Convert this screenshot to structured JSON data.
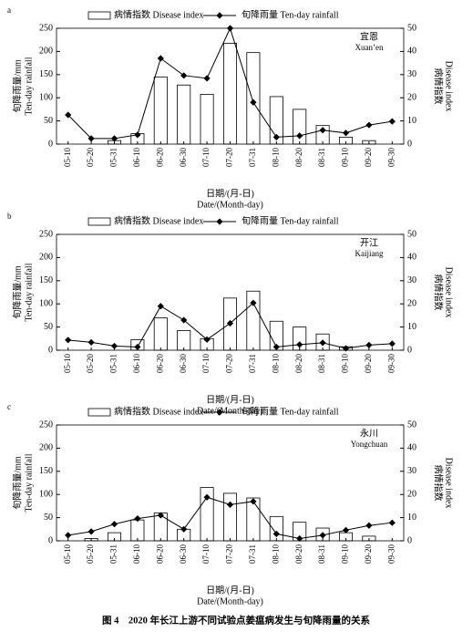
{
  "caption": "图 4　2020 年长江上游不同试验点姜瘟病发生与旬降雨量的关系",
  "chart_data": [
    {
      "type": "combo",
      "panel": "a",
      "location": "宜恩",
      "location_en": "Xuan’en",
      "y_label": "旬降雨量/mm",
      "y_label_en": "Ten-day rainfall",
      "y2_label": "病情指数",
      "y2_label_en": "Disease index",
      "x_label": "日期/(月-日)",
      "x_label_en": "Date/(Month-day)",
      "categories": [
        "05-10",
        "05-20",
        "05-31",
        "06-10",
        "06-20",
        "06-30",
        "07-10",
        "07-20",
        "07-31",
        "08-10",
        "08-20",
        "08-31",
        "09-10",
        "09-20",
        "09-30"
      ],
      "series": [
        {
          "name": "病情指数 Disease index",
          "color": "#ffffff",
          "axis": "y2",
          "values": [
            0,
            0,
            1.5,
            4.5,
            29,
            25.5,
            21.5,
            43.5,
            39.5,
            20.5,
            15,
            8,
            3,
            1.5,
            0
          ]
        },
        {
          "name": "旬降雨量 Ten-day rainfall",
          "color": "#000000",
          "values": [
            63,
            12,
            12,
            20,
            185,
            148,
            142,
            250,
            90,
            15,
            18,
            30,
            24,
            41,
            49
          ]
        }
      ],
      "ylim": [
        0,
        250
      ],
      "yticks": [
        0,
        50,
        100,
        150,
        200,
        250
      ],
      "y2lim": [
        0,
        50
      ],
      "y2ticks": [
        0,
        10,
        20,
        30,
        40,
        50
      ]
    },
    {
      "type": "combo",
      "panel": "b",
      "location": "开江",
      "location_en": "Kaijiang",
      "y_label": "旬降雨量/mm",
      "y_label_en": "Ten-day rainfall",
      "y2_label": "病情指数",
      "y2_label_en": "Disease index",
      "x_label": "日期/(月-日)",
      "x_label_en": "Date/(Month-day)",
      "categories": [
        "05-10",
        "05-20",
        "05-31",
        "06-10",
        "06-20",
        "06-30",
        "07-10",
        "07-20",
        "07-31",
        "08-10",
        "08-20",
        "08-31",
        "09-10",
        "09-20",
        "09-30"
      ],
      "series": [
        {
          "name": "病情指数 Disease index",
          "color": "#ffffff",
          "axis": "y2",
          "values": [
            0,
            0,
            0,
            4.5,
            14,
            8.5,
            5,
            22.5,
            25.5,
            12.5,
            10,
            7,
            1.5,
            0,
            0
          ]
        },
        {
          "name": "旬降雨量 Ten-day rainfall",
          "color": "#000000",
          "values": [
            22,
            17,
            9,
            7,
            95,
            65,
            23,
            58,
            102,
            7,
            12,
            16,
            4,
            11,
            14
          ]
        }
      ],
      "ylim": [
        0,
        250
      ],
      "yticks": [
        0,
        50,
        100,
        150,
        200,
        250
      ],
      "y2lim": [
        0,
        50
      ],
      "y2ticks": [
        0,
        10,
        20,
        30,
        40,
        50
      ]
    },
    {
      "type": "combo",
      "panel": "c",
      "location": "永川",
      "location_en": "Yongchuan",
      "y_label": "旬降雨量/mm",
      "y_label_en": "Ten-day rainfall",
      "y2_label": "病情指数",
      "y2_label_en": "Disease index",
      "x_label": "日期/(月-日)",
      "x_label_en": "Date/(Month-day)",
      "categories": [
        "05-10",
        "05-20",
        "05-31",
        "06-10",
        "06-20",
        "06-30",
        "07-10",
        "07-20",
        "07-31",
        "08-10",
        "08-20",
        "08-31",
        "09-10",
        "09-20",
        "09-30"
      ],
      "series": [
        {
          "name": "病情指数 Disease index",
          "color": "#ffffff",
          "axis": "y2",
          "values": [
            0,
            1,
            3.5,
            9,
            12,
            5,
            23,
            20.5,
            18.5,
            10.5,
            8,
            5.5,
            3.5,
            2,
            0
          ]
        },
        {
          "name": "旬降雨量 Ten-day rainfall",
          "color": "#000000",
          "values": [
            12,
            20,
            36,
            48,
            55,
            25,
            94,
            78,
            85,
            15,
            5,
            12,
            23,
            33,
            39
          ]
        }
      ],
      "ylim": [
        0,
        250
      ],
      "yticks": [
        0,
        50,
        100,
        150,
        200,
        250
      ],
      "y2lim": [
        0,
        50
      ],
      "y2ticks": [
        0,
        10,
        20,
        30,
        40,
        50
      ]
    }
  ]
}
